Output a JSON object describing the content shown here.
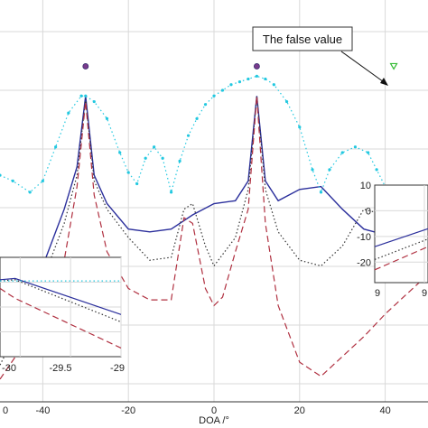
{
  "chart_data": {
    "type": "line",
    "title": "",
    "xlabel": "DOA /°",
    "ylabel": "",
    "xlim": [
      -50,
      50
    ],
    "xticks": [
      -40,
      -20,
      0,
      20,
      40
    ],
    "xtick_labels_visible": [
      "0",
      "-40",
      "-20",
      "0",
      "20",
      "40"
    ],
    "grid": true,
    "series": [
      {
        "style": "solid",
        "color": "#2b2f9c",
        "x": [
          -50,
          -40,
          -35,
          -32,
          -30,
          -28,
          -25,
          -20,
          -15,
          -10,
          -5,
          0,
          5,
          8,
          10,
          12,
          15,
          20,
          25,
          30,
          35,
          40,
          45,
          50
        ],
        "y": [
          -90,
          -60,
          -40,
          -25,
          0,
          -28,
          -38,
          -47,
          -48,
          -47,
          -42,
          -38,
          -37,
          -30,
          0,
          -30,
          -37,
          -33,
          -32,
          -40,
          -47,
          -49,
          -48,
          -47
        ]
      },
      {
        "style": "dotted",
        "color": "#333333",
        "x": [
          -50,
          -40,
          -35,
          -32,
          -30,
          -28,
          -25,
          -20,
          -15,
          -10,
          -7,
          -5,
          -2,
          0,
          5,
          8,
          10,
          12,
          15,
          20,
          25,
          30,
          35,
          40,
          45,
          50
        ],
        "y": [
          -95,
          -65,
          -45,
          -28,
          -1,
          -30,
          -40,
          -50,
          -58,
          -57,
          -40,
          -38,
          -53,
          -60,
          -50,
          -33,
          0,
          -33,
          -48,
          -58,
          -60,
          -53,
          -40,
          -42,
          -49,
          -50
        ]
      },
      {
        "style": "dashed",
        "color": "#b03040",
        "x": [
          -50,
          -40,
          -35,
          -32,
          -30,
          -28,
          -25,
          -20,
          -15,
          -10,
          -7,
          -5,
          -2,
          0,
          2,
          5,
          8,
          10,
          12,
          15,
          20,
          25,
          30,
          35,
          40,
          45,
          50
        ],
        "y": [
          -100,
          -78,
          -58,
          -32,
          -2,
          -35,
          -55,
          -68,
          -72,
          -72,
          -43,
          -45,
          -68,
          -74,
          -71,
          -55,
          -40,
          0,
          -45,
          -74,
          -94,
          -99,
          -92,
          -85,
          -77,
          -70,
          -63
        ]
      },
      {
        "style": "dotted-markers",
        "color": "#22c8e0",
        "x": [
          -50,
          -47,
          -43,
          -40,
          -37,
          -34,
          -31,
          -30,
          -28,
          -25,
          -22,
          -20,
          -18,
          -16,
          -14,
          -12,
          -10,
          -8,
          -6,
          -4,
          -2,
          0,
          2,
          4,
          6,
          8,
          10,
          12,
          14,
          17,
          20,
          23,
          25,
          27,
          30,
          33,
          36,
          38,
          40
        ],
        "y": [
          -28,
          -30,
          -34,
          -30,
          -18,
          -6,
          0,
          0,
          -2,
          -8,
          -20,
          -27,
          -31,
          -22,
          -18,
          -22,
          -34,
          -23,
          -14,
          -8,
          -3,
          0,
          2,
          4,
          5,
          6,
          7,
          6,
          4,
          -2,
          -11,
          -26,
          -34,
          -26,
          -20,
          -18,
          -20,
          -26,
          -32
        ]
      }
    ],
    "markers": [
      {
        "name": "",
        "x": -30,
        "y": 6,
        "shape": "circle",
        "color": "#7a3a8c"
      },
      {
        "name": "",
        "x": 10,
        "y": 6,
        "shape": "circle",
        "color": "#7a3a8c"
      },
      {
        "name": "",
        "x": 42,
        "y": 6,
        "shape": "triangle-down",
        "color": "#33bb33"
      }
    ],
    "annotation": {
      "text": "The false value",
      "target_x": 42,
      "target_y": 6
    },
    "insets": [
      {
        "xticks": [
          "-30",
          "-29.5",
          "-29"
        ],
        "xlim": [
          -30.2,
          -29
        ],
        "ylim": [
          -6,
          2
        ]
      },
      {
        "xticks": [
          "9",
          "9"
        ],
        "yticks": [
          "10",
          "0",
          "-10",
          "-20"
        ],
        "ylim": [
          -28,
          10
        ]
      }
    ]
  }
}
